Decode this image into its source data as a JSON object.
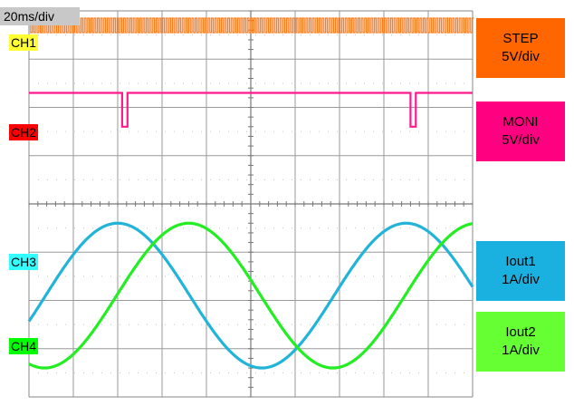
{
  "timebase": "20ms/div",
  "channels": [
    {
      "id": "CH1",
      "name": "STEP",
      "scale": "5V/div",
      "color": "#ff7a1a",
      "badge_color": "#ffff33",
      "box_color": "#ff6600"
    },
    {
      "id": "CH2",
      "name": "MONI",
      "scale": "5V/div",
      "color": "#ff1a8c",
      "badge_color": "#ff0000",
      "box_color": "#ff0080"
    },
    {
      "id": "CH3",
      "name": "Iout1",
      "scale": "1A/div",
      "color": "#22b4d8",
      "badge_color": "#33ffff",
      "box_color": "#1ab0e0"
    },
    {
      "id": "CH4",
      "name": "Iout2",
      "scale": "1A/div",
      "color": "#22ee22",
      "badge_color": "#00ff00",
      "box_color": "#66ff33"
    }
  ],
  "chart_data": {
    "type": "line",
    "grid": true,
    "x_divisions": 10,
    "y_divisions": 8,
    "xlim_div": [
      0,
      10
    ],
    "series": [
      {
        "name": "STEP",
        "kind": "high-frequency square wave",
        "y_low_div": 7.55,
        "y_high_div": 7.85
      },
      {
        "name": "MONI",
        "kind": "pulse train",
        "y_high_div": 6.3,
        "y_low_div": 5.6,
        "pulse_x_div": [
          2.1,
          8.6
        ],
        "pulse_width_div": 0.12
      },
      {
        "name": "Iout1",
        "kind": "sine",
        "period_div": 6.5,
        "center_y_div": 2.1,
        "amplitude_div": 1.5,
        "peak_x_div": 2.0
      },
      {
        "name": "Iout2",
        "kind": "sine",
        "period_div": 6.5,
        "center_y_div": 2.1,
        "amplitude_div": 1.5,
        "peak_x_div": 3.6
      }
    ]
  }
}
